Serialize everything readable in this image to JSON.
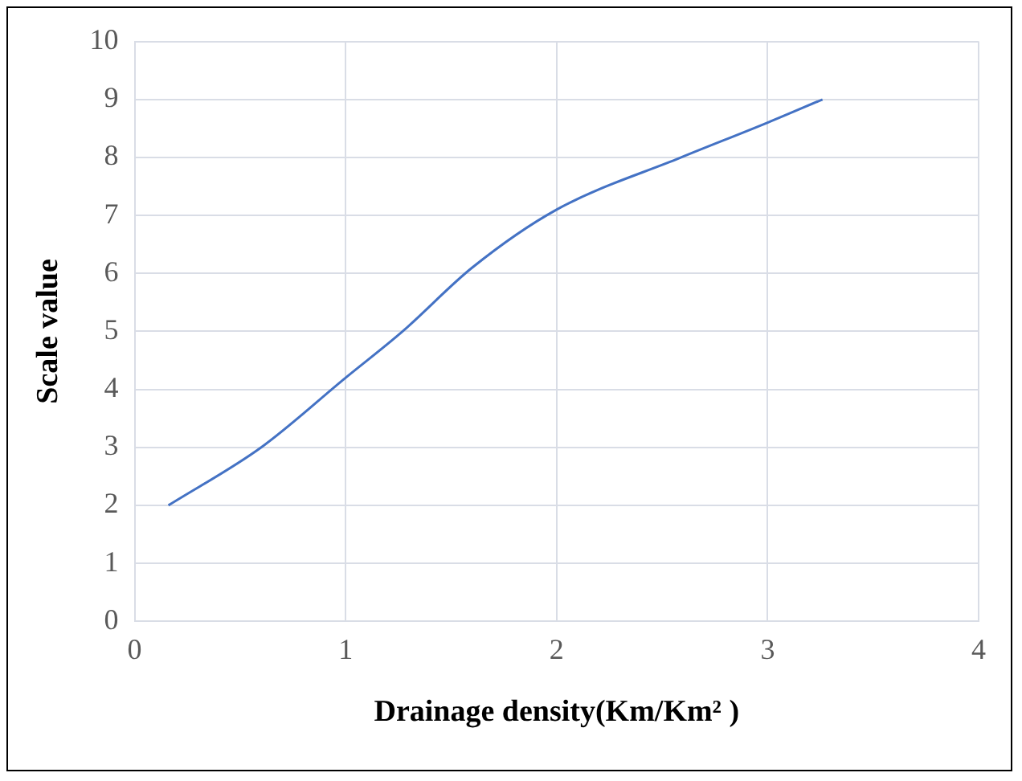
{
  "chart_data": {
    "type": "line",
    "xlabel": "Drainage density(Km/Km² )",
    "ylabel": "Scale value",
    "x": [
      0.16,
      0.6,
      1.0,
      1.27,
      1.6,
      2.0,
      2.59,
      3.0,
      3.26
    ],
    "series": [
      {
        "color": "#4472c4",
        "values": [
          2,
          3,
          4.2,
          5,
          6.1,
          7.1,
          8,
          8.6,
          9
        ]
      }
    ],
    "xlim": [
      0,
      4
    ],
    "xticks": [
      0,
      1,
      2,
      3,
      4
    ],
    "ylim": [
      0,
      10
    ],
    "yticks": [
      0,
      1,
      2,
      3,
      4,
      5,
      6,
      7,
      8,
      9,
      10
    ],
    "grid": true,
    "legend": false,
    "marker": "none",
    "line_style": "solid"
  }
}
